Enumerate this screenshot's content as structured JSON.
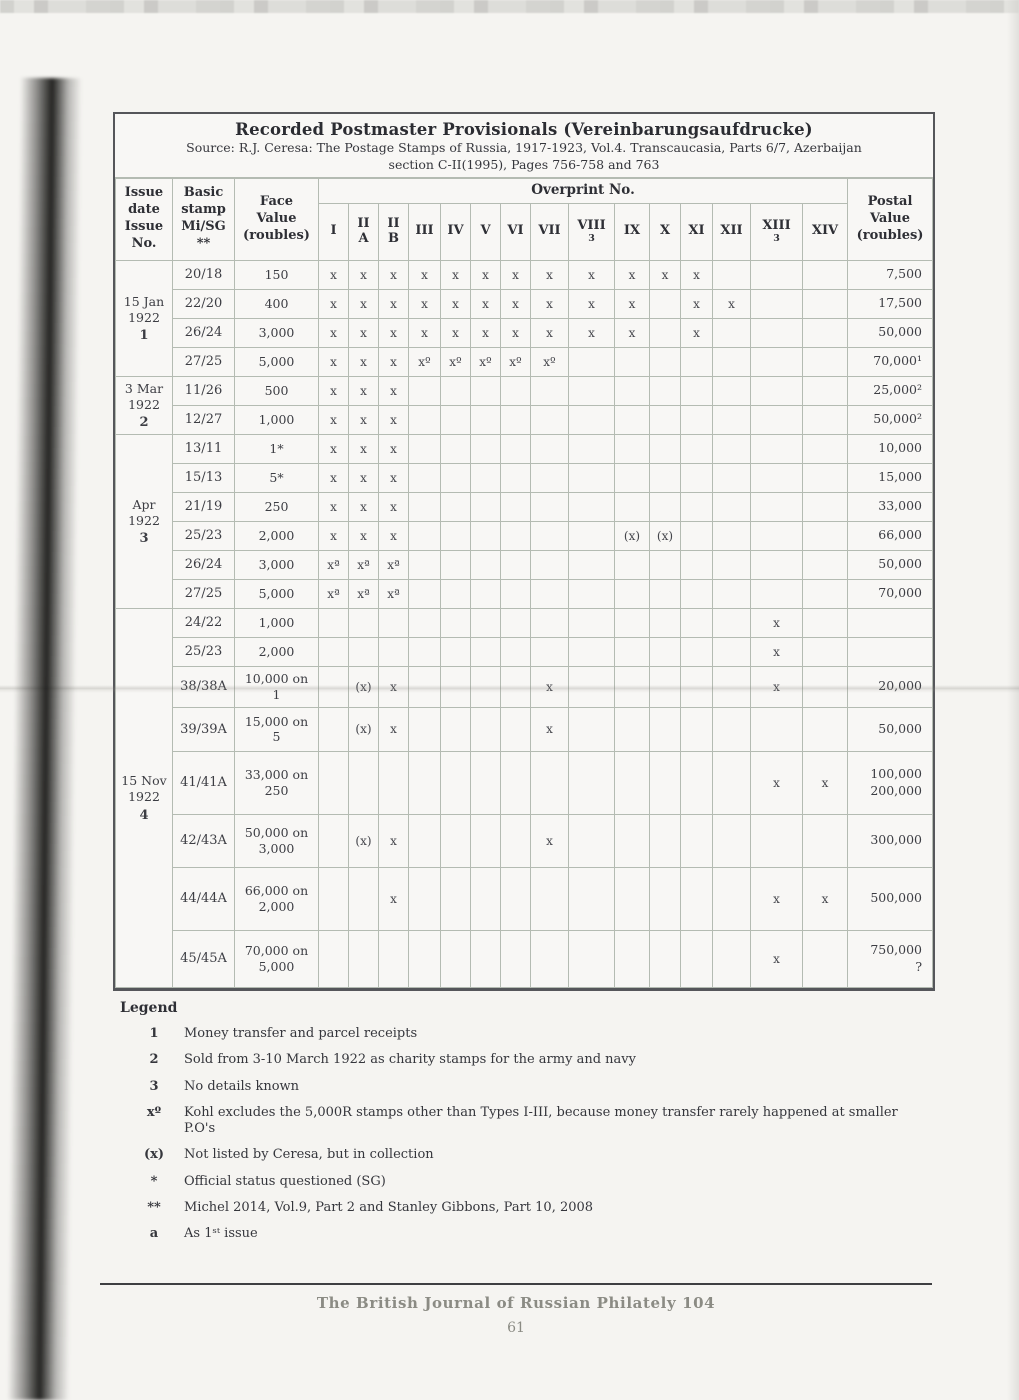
{
  "page": {
    "title": "Recorded Postmaster Provisionals (Vereinbarungsaufdrucke)",
    "source": "Source: R.J. Ceresa: The Postage Stamps of Russia, 1917-1923, Vol.4. Transcaucasia, Parts 6/7, Azerbaijan\nsection C-II(1995), Pages 756-758 and 763"
  },
  "table": {
    "headers": {
      "issue": "Issue\ndate\nIssue\nNo.",
      "basic": "Basic\nstamp\nMi/SG\n**",
      "face": "Face\nValue\n(roubles)",
      "overprint": "Overprint No.",
      "postal": "Postal\nValue\n(roubles)",
      "marks": [
        {
          "t": "I"
        },
        {
          "t": "II",
          "s": "A"
        },
        {
          "t": "II",
          "s": "B"
        },
        {
          "t": "III"
        },
        {
          "t": "IV"
        },
        {
          "t": "V"
        },
        {
          "t": "VI"
        },
        {
          "t": "VII"
        },
        {
          "t": "VIII",
          "n": "3"
        },
        {
          "t": "IX"
        },
        {
          "t": "X"
        },
        {
          "t": "XI"
        },
        {
          "t": "XII"
        },
        {
          "t": "XIII",
          "n": "3"
        },
        {
          "t": "XIV"
        }
      ]
    },
    "rows": [
      {
        "group": {
          "date": "15 Jan\n1922",
          "no": "1",
          "span": 4
        },
        "basic": "20/18",
        "face": "150",
        "marks": [
          "x",
          "x",
          "x",
          "x",
          "x",
          "x",
          "x",
          "x",
          "x",
          "x",
          "x",
          "x",
          "",
          "",
          ""
        ],
        "postal": "7,500"
      },
      {
        "basic": "22/20",
        "face": "400",
        "marks": [
          "x",
          "x",
          "x",
          "x",
          "x",
          "x",
          "x",
          "x",
          "x",
          "x",
          "",
          "x",
          "x",
          "",
          ""
        ],
        "postal": "17,500"
      },
      {
        "basic": "26/24",
        "face": "3,000",
        "marks": [
          "x",
          "x",
          "x",
          "x",
          "x",
          "x",
          "x",
          "x",
          "x",
          "x",
          "",
          "x",
          "",
          "",
          ""
        ],
        "postal": "50,000"
      },
      {
        "basic": "27/25",
        "face": "5,000",
        "marks": [
          "x",
          "x",
          "x",
          "xº",
          "xº",
          "xº",
          "xº",
          "xº",
          "",
          "",
          "",
          "",
          "",
          "",
          ""
        ],
        "postal": "70,000¹"
      },
      {
        "group": {
          "date": "3 Mar\n1922",
          "no": "2",
          "span": 2
        },
        "basic": "11/26",
        "face": "500",
        "marks": [
          "x",
          "x",
          "x",
          "",
          "",
          "",
          "",
          "",
          "",
          "",
          "",
          "",
          "",
          "",
          ""
        ],
        "postal": "25,000²"
      },
      {
        "basic": "12/27",
        "face": "1,000",
        "marks": [
          "x",
          "x",
          "x",
          "",
          "",
          "",
          "",
          "",
          "",
          "",
          "",
          "",
          "",
          "",
          ""
        ],
        "postal": "50,000²"
      },
      {
        "group": {
          "date": "Apr\n1922",
          "no": "3",
          "span": 6
        },
        "basic": "13/11",
        "face": "1*",
        "marks": [
          "x",
          "x",
          "x",
          "",
          "",
          "",
          "",
          "",
          "",
          "",
          "",
          "",
          "",
          "",
          ""
        ],
        "postal": "10,000"
      },
      {
        "basic": "15/13",
        "face": "5*",
        "marks": [
          "x",
          "x",
          "x",
          "",
          "",
          "",
          "",
          "",
          "",
          "",
          "",
          "",
          "",
          "",
          ""
        ],
        "postal": "15,000"
      },
      {
        "basic": "21/19",
        "face": "250",
        "marks": [
          "x",
          "x",
          "x",
          "",
          "",
          "",
          "",
          "",
          "",
          "",
          "",
          "",
          "",
          "",
          ""
        ],
        "postal": "33,000"
      },
      {
        "basic": "25/23",
        "face": "2,000",
        "marks": [
          "x",
          "x",
          "x",
          "",
          "",
          "",
          "",
          "",
          "",
          "(x)",
          "(x)",
          "",
          "",
          "",
          ""
        ],
        "postal": "66,000"
      },
      {
        "basic": "26/24",
        "face": "3,000",
        "marks": [
          "xª",
          "xª",
          "xª",
          "",
          "",
          "",
          "",
          "",
          "",
          "",
          "",
          "",
          "",
          "",
          ""
        ],
        "postal": "50,000"
      },
      {
        "basic": "27/25",
        "face": "5,000",
        "marks": [
          "xª",
          "xª",
          "xª",
          "",
          "",
          "",
          "",
          "",
          "",
          "",
          "",
          "",
          "",
          "",
          ""
        ],
        "postal": "70,000"
      },
      {
        "group": {
          "date": "15 Nov\n1922",
          "no": "4",
          "span": 8
        },
        "basic": "24/22",
        "face": "1,000",
        "marks": [
          "",
          "",
          "",
          "",
          "",
          "",
          "",
          "",
          "",
          "",
          "",
          "",
          "",
          "x",
          ""
        ],
        "postal": ""
      },
      {
        "basic": "25/23",
        "face": "2,000",
        "marks": [
          "",
          "",
          "",
          "",
          "",
          "",
          "",
          "",
          "",
          "",
          "",
          "",
          "",
          "x",
          ""
        ],
        "postal": ""
      },
      {
        "basic": "38/38A",
        "face": "10,000 on\n1",
        "marks": [
          "",
          "(x)",
          "x",
          "",
          "",
          "",
          "",
          "x",
          "",
          "",
          "",
          "",
          "",
          "x",
          ""
        ],
        "postal": "20,000"
      },
      {
        "basic": "39/39A",
        "face": "15,000 on\n5",
        "marks": [
          "",
          "(x)",
          "x",
          "",
          "",
          "",
          "",
          "x",
          "",
          "",
          "",
          "",
          "",
          "",
          ""
        ],
        "postal": "50,000"
      },
      {
        "basic": "41/41A",
        "face": "33,000 on\n250",
        "marks": [
          "",
          "",
          "",
          "",
          "",
          "",
          "",
          "",
          "",
          "",
          "",
          "",
          "",
          "x",
          "x"
        ],
        "postal": "100,000\n200,000"
      },
      {
        "basic": "42/43A",
        "face": "50,000 on\n3,000",
        "marks": [
          "",
          "(x)",
          "x",
          "",
          "",
          "",
          "",
          "x",
          "",
          "",
          "",
          "",
          "",
          "",
          ""
        ],
        "postal": "300,000"
      },
      {
        "basic": "44/44A",
        "face": "66,000 on\n2,000",
        "marks": [
          "",
          "",
          "x",
          "",
          "",
          "",
          "",
          "",
          "",
          "",
          "",
          "",
          "",
          "x",
          "x"
        ],
        "postal": "500,000"
      },
      {
        "basic": "45/45A",
        "face": "70,000 on\n5,000",
        "marks": [
          "",
          "",
          "",
          "",
          "",
          "",
          "",
          "",
          "",
          "",
          "",
          "",
          "",
          "x",
          ""
        ],
        "postal": "750,000\n?"
      }
    ]
  },
  "legend": {
    "heading": "Legend",
    "items": [
      {
        "key": "1",
        "text": "Money transfer and parcel receipts"
      },
      {
        "key": "2",
        "text": "Sold from 3-10 March 1922 as charity stamps for the army and navy"
      },
      {
        "key": "3",
        "text": "No details known"
      },
      {
        "key": "xº",
        "text": "Kohl excludes the 5,000R stamps other than Types I-III, because money transfer rarely happened at smaller P.O's"
      },
      {
        "key": "(x)",
        "text": "Not listed by Ceresa, but in collection"
      },
      {
        "key": "*",
        "text": "Official status questioned (SG)"
      },
      {
        "key": "**",
        "text": "Michel 2014, Vol.9, Part 2 and Stanley Gibbons, Part 10, 2008"
      },
      {
        "key": "a",
        "text": "As 1ˢᵗ issue"
      }
    ]
  },
  "footer": {
    "journal": "The British Journal of Russian Philately 104",
    "page": "61"
  }
}
